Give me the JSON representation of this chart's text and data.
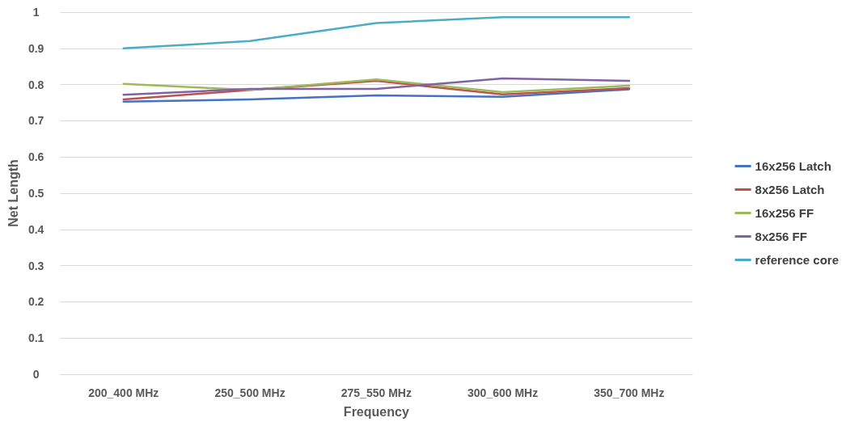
{
  "chart_data": {
    "type": "line",
    "xlabel": "Frequency",
    "ylabel": "Net Length",
    "categories": [
      "200_400 MHz",
      "250_500 MHz",
      "275_550 MHz",
      "300_600 MHz",
      "350_700 MHz"
    ],
    "series": [
      {
        "name": "16x256 Latch",
        "color": "#4472c4",
        "values": [
          0.753,
          0.759,
          0.77,
          0.766,
          0.787
        ]
      },
      {
        "name": "8x256 Latch",
        "color": "#c0504d",
        "values": [
          0.759,
          0.785,
          0.81,
          0.773,
          0.79
        ]
      },
      {
        "name": "16x256 FF",
        "color": "#9bbb59",
        "values": [
          0.802,
          0.785,
          0.814,
          0.779,
          0.797
        ]
      },
      {
        "name": "8x256 FF",
        "color": "#8064a2",
        "values": [
          0.772,
          0.788,
          0.788,
          0.817,
          0.81
        ]
      },
      {
        "name": "reference core",
        "color": "#4bacc6",
        "values": [
          0.9,
          0.92,
          0.97,
          0.986,
          0.986
        ]
      }
    ],
    "ylim": [
      0,
      1
    ],
    "yticks": [
      0,
      0.1,
      0.2,
      0.3,
      0.4,
      0.5,
      0.6,
      0.7,
      0.8,
      0.9,
      1
    ],
    "grid": "y",
    "legend": "right",
    "marker": "none",
    "line_style": "solid"
  }
}
